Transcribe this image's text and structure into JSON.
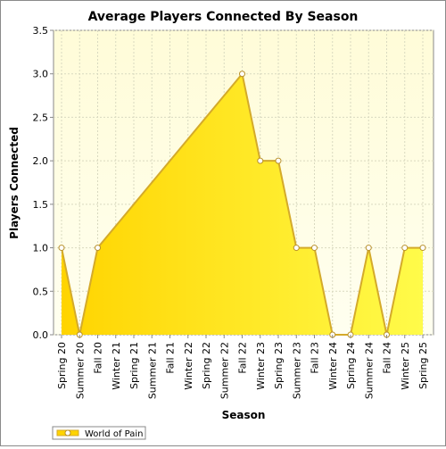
{
  "chart_data": {
    "type": "area",
    "title": "Average Players Connected By Season",
    "xlabel": "Season",
    "ylabel": "Players Connected",
    "ylim": [
      0,
      3.5
    ],
    "yticks": [
      "0.0",
      "0.5",
      "1.0",
      "1.5",
      "2.0",
      "2.5",
      "3.0",
      "3.5"
    ],
    "grid": true,
    "legend_position": "bottom-left",
    "colors": {
      "plot_background_top": "#fffcd8",
      "plot_background_bottom": "#fffff0",
      "area_fill": "#ffd400",
      "area_fill_light": "#fffb4a",
      "line": "#d4aa2a",
      "marker_fill": "#ffffff",
      "marker_stroke": "#b8902a"
    },
    "categories": [
      "Spring 20",
      "Summer 20",
      "Fall 20",
      "Winter 21",
      "Spring 21",
      "Summer 21",
      "Fall 21",
      "Winter 22",
      "Spring 22",
      "Summer 22",
      "Fall 22",
      "Winter 23",
      "Spring 23",
      "Summer 23",
      "Fall 23",
      "Winter 24",
      "Spring 24",
      "Summer 24",
      "Fall 24",
      "Winter 25",
      "Spring 25"
    ],
    "series": [
      {
        "name": "World of Pain",
        "values": [
          1.0,
          0.0,
          1.0,
          null,
          null,
          null,
          null,
          null,
          null,
          null,
          3.0,
          2.0,
          2.0,
          1.0,
          1.0,
          0.0,
          0.0,
          1.0,
          0.0,
          1.0,
          1.0
        ]
      }
    ]
  }
}
